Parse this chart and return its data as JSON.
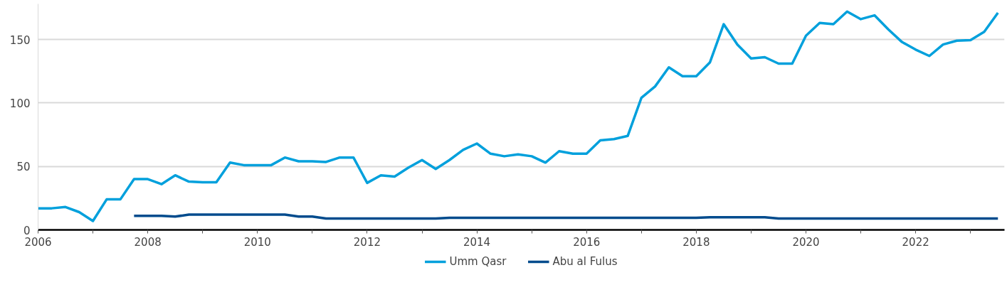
{
  "chart_data": {
    "type": "line",
    "xlim": [
      2006,
      2023.62
    ],
    "ylim": [
      0,
      178
    ],
    "xticks": [
      2006,
      {
        "value": 2007,
        "label": null
      },
      2008,
      {
        "value": 2009,
        "label": null
      },
      2010,
      {
        "value": 2011,
        "label": null
      },
      2012,
      {
        "value": 2013,
        "label": null
      },
      2014,
      {
        "value": 2015,
        "label": null
      },
      2016,
      {
        "value": 2017,
        "label": null
      },
      2018,
      {
        "value": 2019,
        "label": null
      },
      2020,
      {
        "value": 2021,
        "label": null
      },
      2022,
      {
        "value": 2023,
        "label": null
      }
    ],
    "yticks": [
      0,
      50,
      100,
      150
    ],
    "grid": "y",
    "legend": "bottom",
    "marker": "none",
    "line_style": "solid",
    "series": [
      {
        "name": "Umm Qasr",
        "color": "#00a0dc",
        "x": [
          2006,
          2006.25,
          2006.5,
          2006.75,
          2007,
          2007.25,
          2007.5,
          2007.75,
          2008,
          2008.25,
          2008.5,
          2008.75,
          2009,
          2009.25,
          2009.5,
          2009.75,
          2010,
          2010.25,
          2010.5,
          2010.75,
          2011,
          2011.25,
          2011.5,
          2011.75,
          2012,
          2012.25,
          2012.5,
          2012.75,
          2013,
          2013.25,
          2013.5,
          2013.75,
          2014,
          2014.25,
          2014.5,
          2014.75,
          2015,
          2015.25,
          2015.5,
          2015.75,
          2016,
          2016.25,
          2016.5,
          2016.75,
          2017,
          2017.25,
          2017.5,
          2017.75,
          2018,
          2018.25,
          2018.5,
          2018.75,
          2019,
          2019.25,
          2019.5,
          2019.75,
          2020,
          2020.25,
          2020.5,
          2020.75,
          2021,
          2021.25,
          2021.5,
          2021.75,
          2022,
          2022.25,
          2022.5,
          2022.75,
          2023,
          2023.25,
          2023.5
        ],
        "values": [
          17,
          17,
          18,
          14,
          7,
          24,
          24,
          40,
          40,
          36,
          43,
          38,
          37.5,
          37.5,
          53,
          51,
          51,
          51,
          57,
          54,
          54,
          53.5,
          57,
          57,
          37,
          43,
          42,
          49,
          55,
          48,
          55,
          63,
          68,
          60,
          58,
          59.5,
          58,
          53,
          62,
          60,
          60,
          70.5,
          71.5,
          74,
          104,
          113,
          128,
          121,
          121,
          132,
          162,
          146,
          135,
          136,
          131,
          131,
          153,
          163,
          162,
          172,
          166,
          169,
          158,
          148,
          142,
          137,
          146,
          149,
          149.5,
          156,
          171
        ]
      },
      {
        "name": "Abu al Fulus",
        "color": "#004b8d",
        "x": [
          2007.75,
          2008,
          2008.25,
          2008.5,
          2008.75,
          2009,
          2009.25,
          2009.5,
          2009.75,
          2010,
          2010.25,
          2010.5,
          2010.75,
          2011,
          2011.25,
          2011.5,
          2011.75,
          2012,
          2012.25,
          2012.5,
          2012.75,
          2013,
          2013.25,
          2013.5,
          2013.75,
          2014,
          2014.25,
          2014.5,
          2014.75,
          2015,
          2015.25,
          2015.5,
          2015.75,
          2016,
          2016.25,
          2016.5,
          2016.75,
          2017,
          2017.25,
          2017.5,
          2017.75,
          2018,
          2018.25,
          2018.5,
          2018.75,
          2019,
          2019.25,
          2019.5,
          2019.75,
          2020,
          2020.25,
          2020.5,
          2020.75,
          2021,
          2021.25,
          2021.5,
          2021.75,
          2022,
          2022.25,
          2022.5,
          2022.75,
          2023,
          2023.25,
          2023.5
        ],
        "values": [
          11,
          11,
          11,
          10.5,
          12,
          12,
          12,
          12,
          12,
          12,
          12,
          12,
          10.5,
          10.5,
          9,
          9,
          9,
          9,
          9,
          9,
          9,
          9,
          9,
          9.5,
          9.5,
          9.5,
          9.5,
          9.5,
          9.5,
          9.5,
          9.5,
          9.5,
          9.5,
          9.5,
          9.5,
          9.5,
          9.5,
          9.5,
          9.5,
          9.5,
          9.5,
          9.5,
          10,
          10,
          10,
          10,
          10,
          9,
          9,
          9,
          9,
          9,
          9,
          9,
          9,
          9,
          9,
          9,
          9,
          9,
          9,
          9,
          9,
          9
        ]
      }
    ]
  }
}
